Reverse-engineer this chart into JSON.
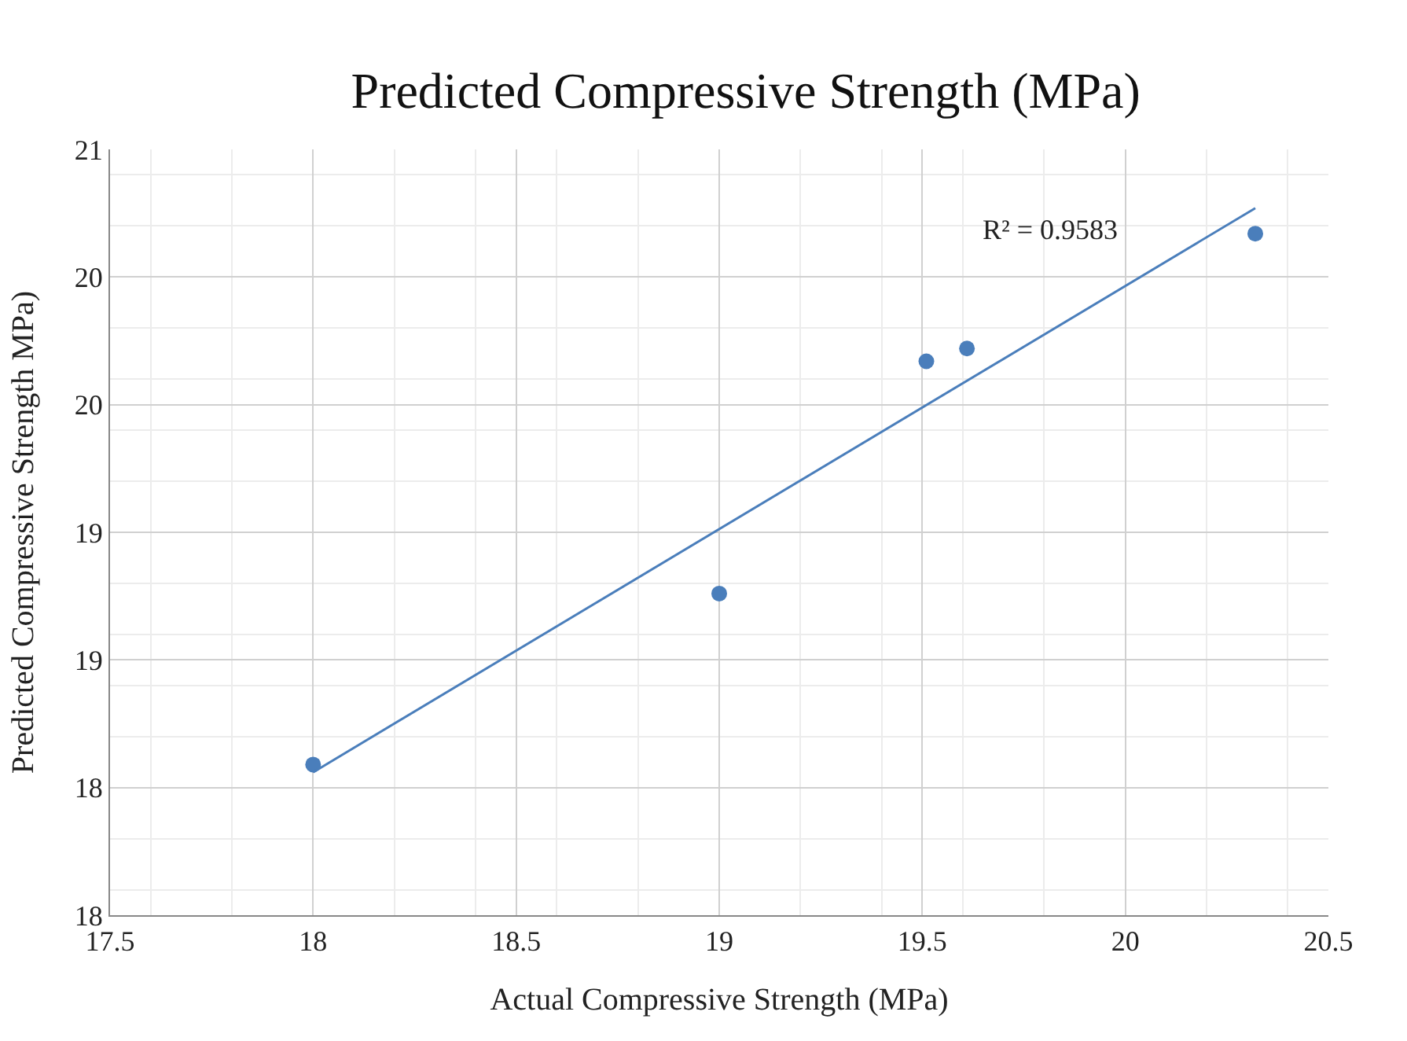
{
  "chart_data": {
    "type": "scatter",
    "title": "Predicted Compressive Strength (MPa)",
    "xlabel": "Actual Compressive Strength (MPa)",
    "ylabel": "Predicted Compressive Strength MPa)",
    "series": [
      {
        "color": "#4a7ebb",
        "x": [
          18,
          19,
          19.51,
          19.61,
          20.32
        ],
        "values": [
          18.09,
          18.76,
          19.67,
          19.72,
          20.17
        ],
        "marker": "circle"
      },
      {
        "type": "line",
        "color": "#4a7ebb",
        "x": [
          18,
          20.32
        ],
        "values": [
          18.06,
          20.27
        ],
        "line_style": "solid",
        "marker": "none"
      }
    ],
    "xlim": [
      17.5,
      20.5
    ],
    "xticks": [
      17.5,
      18,
      18.5,
      19,
      19.5,
      20,
      20.5
    ],
    "ylim": [
      17.5,
      20.5
    ],
    "yticks": [
      {
        "value": 17.5,
        "label": "18"
      },
      {
        "value": 18,
        "label": "18"
      },
      {
        "value": 18.5,
        "label": "19"
      },
      {
        "value": 19,
        "label": "19"
      },
      {
        "value": 19.5,
        "label": "20"
      },
      {
        "value": 20,
        "label": "20"
      },
      {
        "value": 20.5,
        "label": "21"
      }
    ],
    "annotations": [
      "R² = 0.9583"
    ],
    "grid": true
  }
}
